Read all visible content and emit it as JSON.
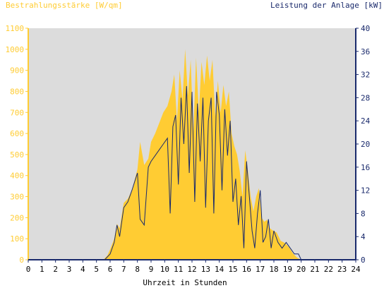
{
  "chart_data": {
    "type": "area",
    "title_left": "Bestrahlungsstärke [W/qm]",
    "title_right": "Leistung der Anlage [kW]",
    "xlabel": "Uhrzeit in Stunden",
    "xlim": [
      0,
      24
    ],
    "x_ticks": [
      0,
      1,
      2,
      3,
      4,
      5,
      6,
      7,
      8,
      9,
      10,
      11,
      12,
      13,
      14,
      15,
      16,
      17,
      18,
      19,
      20,
      21,
      22,
      23,
      24
    ],
    "ylim_left": [
      0,
      1100
    ],
    "y_ticks_left": [
      0,
      100,
      200,
      300,
      400,
      500,
      600,
      700,
      800,
      900,
      1000,
      1100
    ],
    "ylim_right": [
      0,
      40
    ],
    "y_ticks_right": [
      0,
      4,
      8,
      12,
      16,
      20,
      24,
      28,
      32,
      36,
      40
    ],
    "grid": false,
    "colors": {
      "plot_background": "#dcdcdc",
      "irradiance_fill": "#ffcc33",
      "power_line": "#1a2a6c",
      "left_axis": "#ffcc33",
      "right_axis": "#1a2a6c",
      "left_axis_text": "#ffcc33",
      "right_axis_text": "#1a2a6c"
    },
    "series": [
      {
        "name": "Bestrahlungsstärke",
        "axis": "left",
        "x": [
          0,
          5.5,
          5.8,
          6.0,
          6.3,
          6.5,
          6.7,
          7.0,
          7.3,
          7.6,
          8.0,
          8.2,
          8.5,
          8.8,
          9.0,
          9.3,
          9.6,
          9.9,
          10.2,
          10.5,
          10.7,
          10.9,
          11.1,
          11.3,
          11.5,
          11.7,
          11.9,
          12.1,
          12.3,
          12.5,
          12.7,
          12.9,
          13.1,
          13.3,
          13.5,
          13.7,
          13.9,
          14.1,
          14.3,
          14.5,
          14.7,
          14.9,
          15.1,
          15.3,
          15.5,
          15.7,
          15.9,
          16.1,
          16.3,
          16.5,
          16.7,
          16.9,
          17.1,
          17.3,
          17.5,
          17.7,
          17.9,
          18.2,
          18.5,
          18.8,
          19.1,
          19.4,
          19.7,
          20.0,
          24
        ],
        "values": [
          0,
          0,
          20,
          50,
          100,
          170,
          150,
          270,
          290,
          330,
          430,
          560,
          450,
          480,
          560,
          600,
          650,
          700,
          730,
          800,
          880,
          660,
          900,
          760,
          1000,
          780,
          950,
          600,
          960,
          700,
          940,
          830,
          970,
          850,
          950,
          680,
          850,
          700,
          830,
          730,
          800,
          600,
          540,
          500,
          420,
          300,
          520,
          420,
          300,
          230,
          300,
          340,
          200,
          180,
          190,
          150,
          140,
          130,
          90,
          80,
          60,
          30,
          10,
          0,
          0
        ]
      },
      {
        "name": "Leistung",
        "axis": "right",
        "x": [
          0,
          5.6,
          6.0,
          6.3,
          6.5,
          6.7,
          7.0,
          7.3,
          7.6,
          8.0,
          8.2,
          8.5,
          8.8,
          9.0,
          9.3,
          9.6,
          9.9,
          10.2,
          10.4,
          10.6,
          10.8,
          11.0,
          11.2,
          11.4,
          11.6,
          11.8,
          12.0,
          12.2,
          12.4,
          12.6,
          12.8,
          13.0,
          13.2,
          13.4,
          13.6,
          13.8,
          14.0,
          14.2,
          14.4,
          14.6,
          14.8,
          15.0,
          15.2,
          15.4,
          15.6,
          15.8,
          16.0,
          16.2,
          16.4,
          16.6,
          16.8,
          17.0,
          17.2,
          17.4,
          17.6,
          17.8,
          18.0,
          18.3,
          18.6,
          18.9,
          19.2,
          19.5,
          19.8,
          20.0,
          24
        ],
        "values": [
          0,
          0,
          1,
          3,
          6,
          4,
          9,
          10,
          12,
          15,
          7,
          6,
          16,
          17,
          18,
          19,
          20,
          21,
          8,
          23,
          25,
          13,
          28,
          20,
          30,
          15,
          29,
          10,
          27,
          17,
          28,
          9,
          24,
          28,
          8,
          29,
          25,
          12,
          26,
          18,
          24,
          10,
          14,
          6,
          11,
          2,
          17,
          11,
          5,
          2,
          8,
          12,
          3,
          4,
          7,
          2,
          5,
          3,
          2,
          3,
          2,
          1,
          1,
          0,
          0
        ]
      }
    ]
  }
}
